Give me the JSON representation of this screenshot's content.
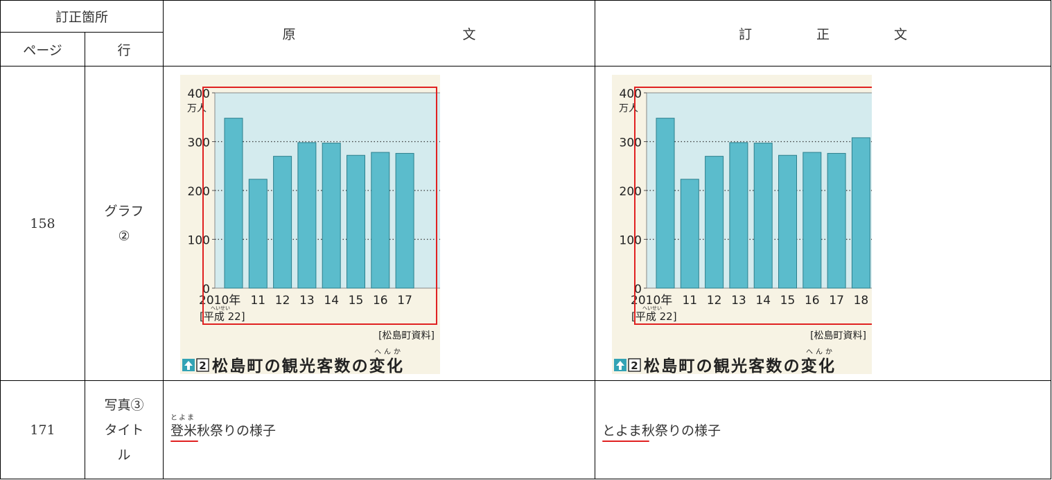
{
  "header": {
    "location": "訂正箇所",
    "page": "ページ",
    "line": "行",
    "original": [
      "原",
      "文"
    ],
    "corrected": [
      "訂",
      "正",
      "文"
    ]
  },
  "rows": [
    {
      "page": "158",
      "line": [
        "グラフ",
        "②"
      ]
    },
    {
      "page": "171",
      "line": [
        "写真③",
        "タイト",
        "ル"
      ],
      "original_text": "登米秋祭りの様子",
      "original_ruby": "とよま",
      "original_ruby_base": "登米",
      "original_rest": "秋祭りの様子",
      "corrected_text": "とよま秋祭りの様子",
      "corrected_highlight": "とよま",
      "corrected_rest": "秋祭りの様子"
    }
  ],
  "chart_data": [
    {
      "type": "bar",
      "categories": [
        "2010年",
        "11",
        "12",
        "13",
        "14",
        "15",
        "16",
        "17"
      ],
      "values": [
        348,
        223,
        270,
        298,
        297,
        272,
        278,
        276
      ],
      "ylim": [
        0,
        400
      ],
      "yticks": [
        "0",
        "100",
        "200",
        "300",
        "400"
      ],
      "yunit": "万人",
      "era_note": "[平成 22]",
      "era_ruby": "へいせい",
      "source": "[松島町資料]",
      "caption_num": "2",
      "caption": "松島町の観光客数の変化",
      "caption_ruby": "へんか",
      "grid": "dotted at 100, 200, 300",
      "bar_color": "#5bbccc",
      "plot_bg": "#d4ebee",
      "panel_bg": "#f7f3e4",
      "highlight_color": "#e02020"
    },
    {
      "type": "bar",
      "categories": [
        "2010年",
        "11",
        "12",
        "13",
        "14",
        "15",
        "16",
        "17",
        "18"
      ],
      "values": [
        348,
        223,
        270,
        298,
        297,
        272,
        278,
        276,
        308
      ],
      "ylim": [
        0,
        400
      ],
      "yticks": [
        "0",
        "100",
        "200",
        "300",
        "400"
      ],
      "yunit": "万人",
      "era_note": "[平成 22]",
      "era_ruby": "へいせい",
      "source": "[松島町資料]",
      "caption_num": "2",
      "caption": "松島町の観光客数の変化",
      "caption_ruby": "へんか",
      "grid": "dotted at 100, 200, 300",
      "bar_color": "#5bbccc",
      "plot_bg": "#d4ebee",
      "panel_bg": "#f7f3e4",
      "highlight_color": "#e02020"
    }
  ]
}
